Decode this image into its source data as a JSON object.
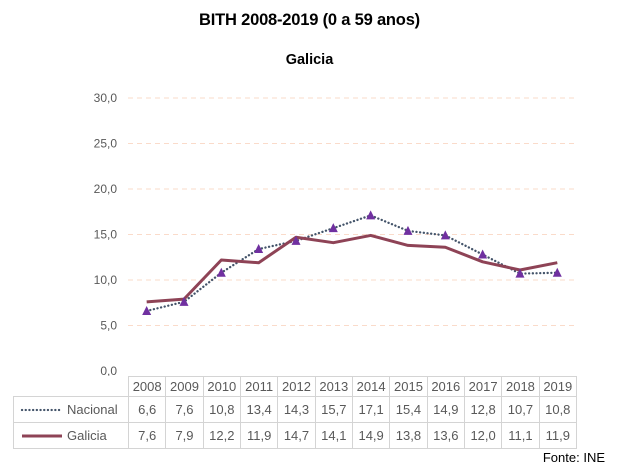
{
  "title": "BITH 2008-2019 (0 a 59 anos)",
  "subtitle": "Galicia",
  "source": "Fonte: INE",
  "colors": {
    "nacional_line": "#44546A",
    "galicia_line": "#8E4356",
    "marker": "#7030A0",
    "gridline": "#FADBCA",
    "table_border": "#D4D4D4",
    "table_text": "#595959",
    "axis_text": "#595959",
    "title_text": "#000000"
  },
  "chart_data": {
    "type": "line",
    "title": "BITH 2008-2019 (0 a 59 anos)",
    "subtitle": "Galicia",
    "x": [
      "2008",
      "2009",
      "2010",
      "2011",
      "2012",
      "2013",
      "2014",
      "2015",
      "2016",
      "2017",
      "2018",
      "2019"
    ],
    "series": [
      {
        "name": "Nacional",
        "values": [
          6.6,
          7.6,
          10.8,
          13.4,
          14.3,
          15.7,
          17.1,
          15.4,
          14.9,
          12.8,
          10.7,
          10.8
        ],
        "labels": [
          "6,6",
          "7,6",
          "10,8",
          "13,4",
          "14,3",
          "15,7",
          "17,1",
          "15,4",
          "14,9",
          "12,8",
          "10,7",
          "10,8"
        ],
        "style": "dotted",
        "marker": "triangle",
        "color": "#44546A",
        "marker_color": "#7030A0"
      },
      {
        "name": "Galicia",
        "values": [
          7.6,
          7.9,
          12.2,
          11.9,
          14.7,
          14.1,
          14.9,
          13.8,
          13.6,
          12.0,
          11.1,
          11.9
        ],
        "labels": [
          "7,6",
          "7,9",
          "12,2",
          "11,9",
          "14,7",
          "14,1",
          "14,9",
          "13,8",
          "13,6",
          "12,0",
          "11,1",
          "11,9"
        ],
        "style": "solid",
        "marker": "none",
        "color": "#8E4356",
        "marker_color": null
      }
    ],
    "ylim": [
      0,
      30
    ],
    "y_ticks": [
      "30,0",
      "25,0",
      "20,0",
      "15,0",
      "10,0",
      "5,0",
      "0,0"
    ],
    "grid": "horizontal-dashed",
    "legend_position": "data-table-left",
    "source": "Fonte: INE"
  }
}
